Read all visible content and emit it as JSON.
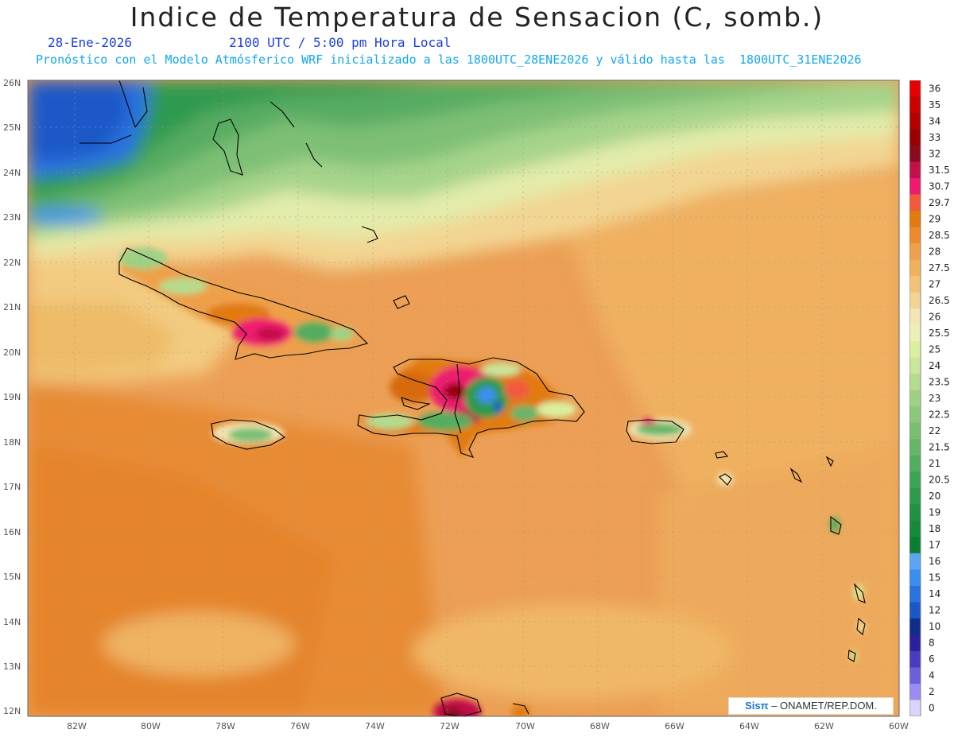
{
  "title": "Indice de Temperatura de Sensacion (C, somb.)",
  "date": "28-Ene-2026",
  "time": "2100 UTC / 5:00 pm Hora Local",
  "model_line": "Pronóstico con el Modelo Atmósferico WRF inicializado a las 1800UTC_28ENE2026 y válido hasta las  1800UTC_31ENE2026",
  "credit": {
    "brand": "Sisπ",
    "text": "– ONAMET/REP.DOM."
  },
  "lat_labels": [
    "26N",
    "25N",
    "24N",
    "23N",
    "22N",
    "21N",
    "20N",
    "19N",
    "18N",
    "17N",
    "16N",
    "15N",
    "14N",
    "13N",
    "12N"
  ],
  "lon_labels": [
    "82W",
    "80W",
    "78W",
    "76W",
    "74W",
    "72W",
    "70W",
    "68W",
    "66W",
    "64W",
    "62W",
    "60W"
  ],
  "legend": [
    {
      "label": "36",
      "color": "#e60000"
    },
    {
      "label": "35",
      "color": "#cc0000"
    },
    {
      "label": "34",
      "color": "#b30000"
    },
    {
      "label": "33",
      "color": "#990000"
    },
    {
      "label": "32",
      "color": "#8c0a1e"
    },
    {
      "label": "31.5",
      "color": "#c2104a"
    },
    {
      "label": "30.7",
      "color": "#ee1a6e"
    },
    {
      "label": "29.7",
      "color": "#f35a3c"
    },
    {
      "label": "29",
      "color": "#e27a10"
    },
    {
      "label": "28.5",
      "color": "#ec8a2c"
    },
    {
      "label": "28",
      "color": "#eea04a"
    },
    {
      "label": "27.5",
      "color": "#f1b15c"
    },
    {
      "label": "27",
      "color": "#f3c277"
    },
    {
      "label": "26.5",
      "color": "#f2d496"
    },
    {
      "label": "26",
      "color": "#f1e6b4"
    },
    {
      "label": "25.5",
      "color": "#ebf0b8"
    },
    {
      "label": "25",
      "color": "#dcef9e"
    },
    {
      "label": "24",
      "color": "#c9e69a"
    },
    {
      "label": "23.5",
      "color": "#b4dc8e"
    },
    {
      "label": "23",
      "color": "#9fd184"
    },
    {
      "label": "22.5",
      "color": "#8cc87c"
    },
    {
      "label": "22",
      "color": "#78bf72"
    },
    {
      "label": "21.5",
      "color": "#66b668"
    },
    {
      "label": "21",
      "color": "#52ad5e"
    },
    {
      "label": "20.5",
      "color": "#3ea455"
    },
    {
      "label": "20",
      "color": "#2e9a4c"
    },
    {
      "label": "19",
      "color": "#1f9044"
    },
    {
      "label": "18",
      "color": "#138a3c"
    },
    {
      "label": "17",
      "color": "#0a7f34"
    },
    {
      "label": "16",
      "color": "#5aa6f2"
    },
    {
      "label": "15",
      "color": "#3a8ef0"
    },
    {
      "label": "14",
      "color": "#2a72e0"
    },
    {
      "label": "12",
      "color": "#1a58c8"
    },
    {
      "label": "10",
      "color": "#0f2e8a"
    },
    {
      "label": "8",
      "color": "#2a1f9c"
    },
    {
      "label": "6",
      "color": "#4a3cc0"
    },
    {
      "label": "4",
      "color": "#6e5ed8"
    },
    {
      "label": "2",
      "color": "#9a8cf0"
    },
    {
      "label": "0",
      "color": "#d8d4fa"
    }
  ]
}
